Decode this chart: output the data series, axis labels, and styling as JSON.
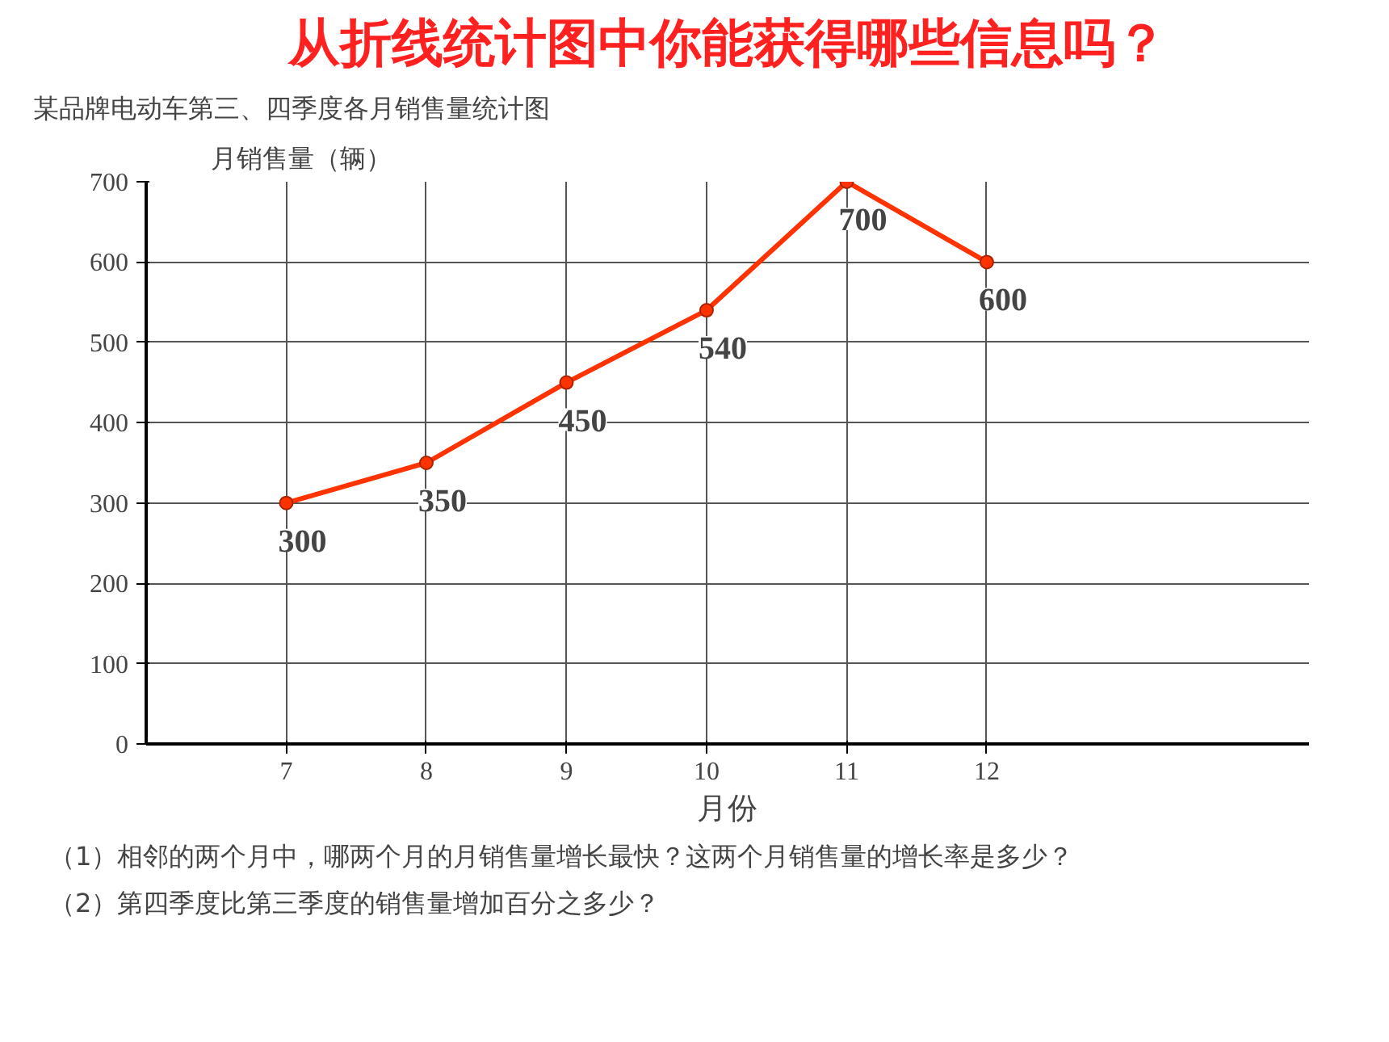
{
  "chart_data": {
    "type": "line",
    "title": "从折线统计图中你能获得哪些信息吗？",
    "subtitle": "某品牌电动车第三、四季度各月销售量统计图",
    "ylabel": "月销售量（辆）",
    "xlabel": "月份",
    "categories": [
      "7",
      "8",
      "9",
      "10",
      "11",
      "12"
    ],
    "series": [
      {
        "color": "#ff3300",
        "values": [
          300,
          350,
          450,
          540,
          700,
          600
        ]
      }
    ],
    "ylim": [
      0,
      700
    ],
    "yticks": [
      0,
      100,
      200,
      300,
      400,
      500,
      600,
      700
    ],
    "grid": true,
    "marker": "circle",
    "data_labels": true,
    "annotations": [
      "（1）相邻的两个月中，哪两个月的月销售量增长最快？这两个月销售量的增长率是多少？",
      "（2）第四季度比第三季度的销售量增加百分之多少？"
    ]
  }
}
